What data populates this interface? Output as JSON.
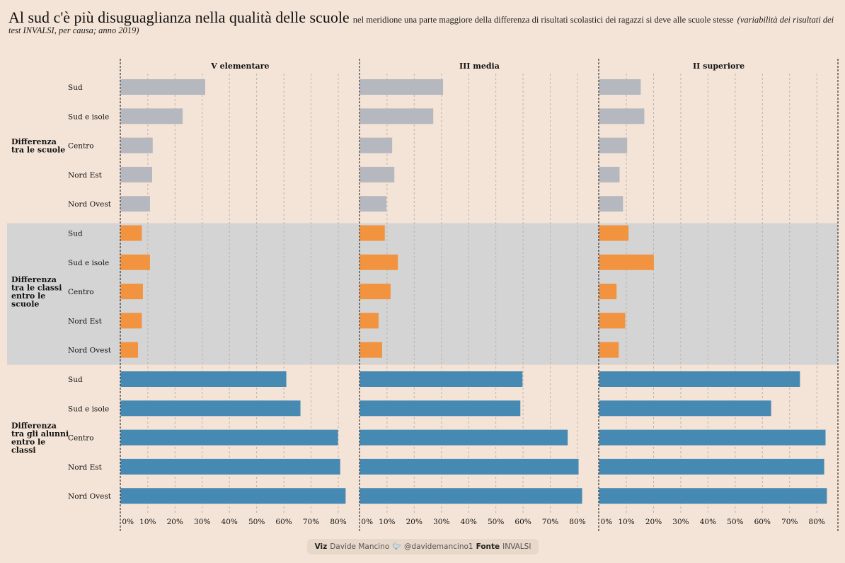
{
  "header": {
    "title": "Al sud c'è più disuguaglianza nella qualità delle scuole",
    "subtitle": "nel meridione una parte maggiore della differenza di risultati scolastici dei ragazzi si deve alle scuole stesse",
    "note": "(variabilità dei risultati dei test INVALSI, per causa; anno 2019)"
  },
  "footer": {
    "viz_label": "Viz",
    "author": "Davide Mancino",
    "twitter_icon": "twitter-bird-icon",
    "handle": "@davidemancino1",
    "source_label": "Fonte",
    "source": "INVALSI"
  },
  "chart_data": {
    "type": "bar",
    "orientation": "horizontal",
    "title": "Al sud c'è più disuguaglianza nella qualità delle scuole",
    "panels": [
      "V elementare",
      "III media",
      "II superiore"
    ],
    "groups": [
      {
        "name": "Differenza tra le scuole",
        "label_lines": [
          "Differenza",
          "tra le scuole"
        ],
        "color": "#b6b8c0",
        "shaded": false
      },
      {
        "name": "Differenza tra le classi entro le scuole",
        "label_lines": [
          "Differenza",
          "tra le classi",
          "entro le",
          "scuole"
        ],
        "color": "#f29340",
        "shaded": true
      },
      {
        "name": "Differenza tra gli alunni entro le classi",
        "label_lines": [
          "Differenza",
          "tra gli alunni",
          "entro le",
          "classi"
        ],
        "color": "#4689b2",
        "shaded": false
      }
    ],
    "categories": [
      "Sud",
      "Sud e isole",
      "Centro",
      "Nord Est",
      "Nord Ovest"
    ],
    "values": {
      "V elementare": {
        "Differenza tra le scuole": [
          31.1,
          22.8,
          11.8,
          11.6,
          10.8
        ],
        "Differenza tra le classi entro le scuole": [
          7.8,
          10.8,
          8.2,
          7.8,
          6.4
        ],
        "Differenza tra gli alunni entro le classi": [
          60.9,
          66.1,
          79.9,
          80.7,
          82.7
        ]
      },
      "III media": {
        "Differenza tra le scuole": [
          30.6,
          27.0,
          11.9,
          12.7,
          9.8
        ],
        "Differenza tra le classi entro le scuole": [
          9.2,
          14.0,
          11.3,
          6.9,
          8.2
        ],
        "Differenza tra gli alunni entro le classi": [
          59.8,
          59.0,
          76.4,
          80.4,
          81.7
        ]
      },
      "II superiore": {
        "Differenza tra le scuole": [
          15.3,
          16.6,
          10.3,
          7.5,
          8.8
        ],
        "Differenza tra le classi entro le scuole": [
          10.8,
          20.1,
          6.4,
          9.6,
          7.2
        ],
        "Differenza tra gli alunni entro le classi": [
          73.8,
          63.2,
          83.2,
          82.7,
          83.7
        ]
      }
    },
    "xlim": [
      0,
      87
    ],
    "xticks": [
      0,
      10,
      20,
      30,
      40,
      50,
      60,
      70,
      80
    ],
    "xtick_labels": [
      "0%",
      "10%",
      "20%",
      "30%",
      "40%",
      "50%",
      "60%",
      "70%",
      "80%"
    ],
    "xlabel": "",
    "ylabel": "",
    "grid": true,
    "shaded_band_color": "#d4d4d4"
  }
}
